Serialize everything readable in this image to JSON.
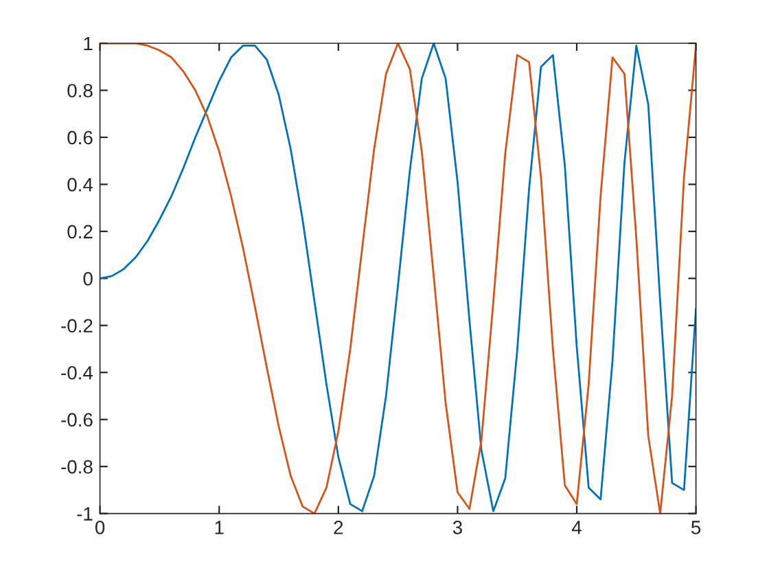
{
  "chart_data": {
    "type": "line",
    "x": [
      0,
      0.1,
      0.2,
      0.3,
      0.4,
      0.5,
      0.6,
      0.7,
      0.8,
      0.9,
      1.0,
      1.1,
      1.2,
      1.3,
      1.4,
      1.5,
      1.6,
      1.7,
      1.8,
      1.9,
      2.0,
      2.1,
      2.2,
      2.3,
      2.4,
      2.5,
      2.6,
      2.7,
      2.8,
      2.9,
      3.0,
      3.1,
      3.2,
      3.3,
      3.4,
      3.5,
      3.6,
      3.7,
      3.8,
      3.9,
      4.0,
      4.1,
      4.2,
      4.3,
      4.4,
      4.5,
      4.6,
      4.7,
      4.8,
      4.9,
      5.0
    ],
    "series": [
      {
        "color": "#0072bd",
        "values": [
          0,
          0.01,
          0.04,
          0.09,
          0.16,
          0.25,
          0.35,
          0.47,
          0.6,
          0.72,
          0.84,
          0.94,
          0.99,
          0.99,
          0.93,
          0.78,
          0.55,
          0.25,
          -0.1,
          -0.45,
          -0.76,
          -0.96,
          -0.99,
          -0.84,
          -0.5,
          -0.03,
          0.46,
          0.85,
          1.0,
          0.85,
          0.41,
          -0.18,
          -0.73,
          -0.99,
          -0.85,
          -0.31,
          0.38,
          0.9,
          0.95,
          0.48,
          -0.29,
          -0.89,
          -0.94,
          -0.35,
          0.49,
          0.99,
          0.74,
          -0.1,
          -0.87,
          -0.9,
          -0.13
        ]
      },
      {
        "color": "#d95319",
        "values": [
          1,
          1.0,
          1.0,
          1.0,
          0.99,
          0.97,
          0.94,
          0.88,
          0.8,
          0.69,
          0.54,
          0.35,
          0.13,
          -0.12,
          -0.38,
          -0.63,
          -0.84,
          -0.97,
          -1.0,
          -0.89,
          -0.65,
          -0.3,
          0.13,
          0.55,
          0.87,
          1.0,
          0.89,
          0.54,
          0.01,
          -0.53,
          -0.91,
          -0.98,
          -0.69,
          -0.1,
          0.53,
          0.95,
          0.92,
          0.43,
          -0.3,
          -0.88,
          -0.96,
          -0.45,
          0.35,
          0.94,
          0.87,
          0.17,
          -0.67,
          -1.0,
          -0.5,
          0.43,
          0.99
        ]
      }
    ],
    "xlim": [
      0,
      5
    ],
    "xticks": [
      0,
      1,
      2,
      3,
      4,
      5
    ],
    "ylim": [
      -1,
      1
    ],
    "yticks": [
      -1,
      -0.8,
      -0.6,
      -0.4,
      -0.2,
      0,
      0.2,
      0.4,
      0.6,
      0.8,
      1
    ],
    "grid": false,
    "legend": false,
    "marker": "none",
    "line_style": "solid"
  }
}
